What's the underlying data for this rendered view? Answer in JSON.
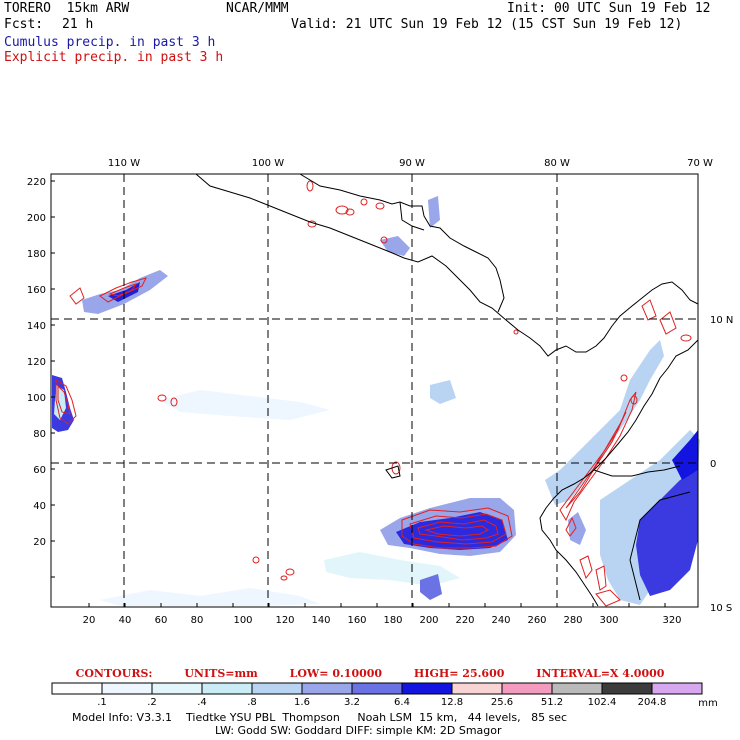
{
  "header": {
    "model": "TORERO  15km ARW",
    "center": "NCAR/MMM",
    "init": "Init: 00 UTC Sun 19 Feb 12",
    "fcst_label": "Fcst:",
    "fcst_value": "21 h",
    "valid": "Valid: 21 UTC Sun 19 Feb 12 (15 CST Sun 19 Feb 12)",
    "cumulus_label": "Cumulus precip. in past 3 h",
    "explicit_label": "Explicit precip. in past 3 h"
  },
  "map": {
    "lon_labels": [
      "110 W",
      "100 W",
      "90 W",
      "80 W",
      "70 W"
    ],
    "lat_labels": [
      "10 N",
      "0",
      "10 S"
    ],
    "x_ticks": [
      "20",
      "40",
      "60",
      "80",
      "100",
      "120",
      "140",
      "160",
      "180",
      "200",
      "220",
      "240",
      "260",
      "280",
      "300",
      "320"
    ],
    "y_ticks": [
      "220",
      "200",
      "180",
      "160",
      "140",
      "120",
      "100",
      "80",
      "60",
      "40",
      "20"
    ]
  },
  "contour_info": {
    "contours": "CONTOURS:",
    "units": "UNITS=mm",
    "low": "LOW= 0.10000",
    "high": "HIGH= 25.600",
    "interval": "INTERVAL=X 4.0000"
  },
  "colorbar": {
    "unit": "mm",
    "labels": [
      ".1",
      ".2",
      ".4",
      ".8",
      "1.6",
      "3.2",
      "6.4",
      "12.8",
      "25.6",
      "51.2",
      "102.4",
      "204.8"
    ],
    "colors": [
      "#ffffff",
      "#eef6ff",
      "#e1f5fb",
      "#c9ecf6",
      "#b9d4f2",
      "#9aa6ea",
      "#6a72e4",
      "#1414e0",
      "#f8d4d4",
      "#f49cc0",
      "#bababa",
      "#3c3c3c",
      "#d7a8f0"
    ]
  },
  "footer": {
    "line1": "Model Info: V3.3.1    Tiedtke YSU PBL  Thompson     Noah LSM  15 km,   44 levels,   85 sec",
    "line2": "LW: Godd SW: Goddard DIFF: simple KM: 2D Smagor"
  }
}
